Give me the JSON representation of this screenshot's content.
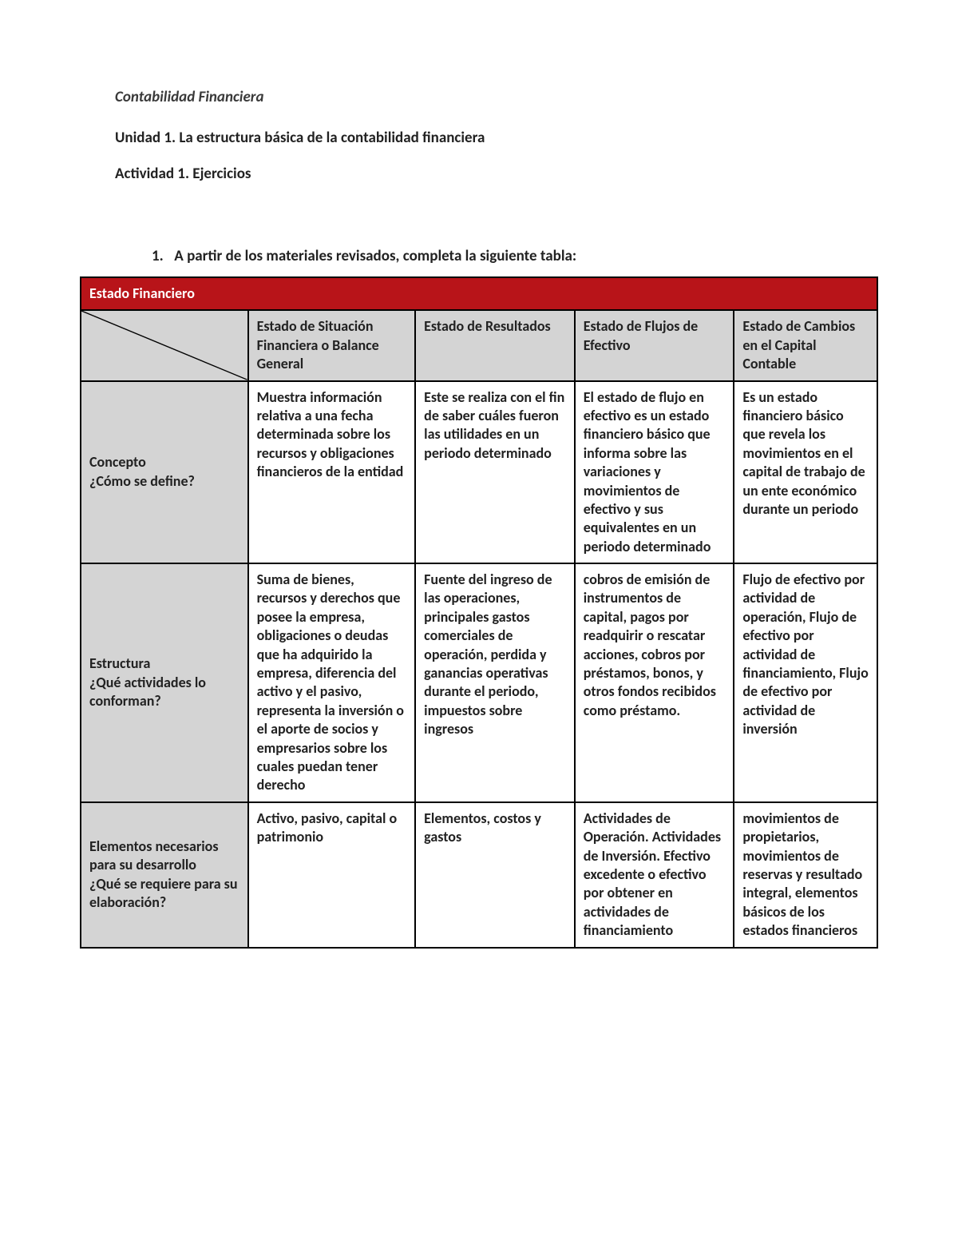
{
  "header": {
    "course_title": "Contabilidad Financiera",
    "unit_line": "Unidad 1. La estructura básica de la contabilidad financiera",
    "activity_line": "Actividad 1. Ejercicios"
  },
  "prompt": {
    "number": "1.",
    "text": "A partir de los materiales revisados, completa la siguiente tabla:"
  },
  "table": {
    "banner": "Estado Financiero",
    "columns": [
      "Estado de Situación Financiera o Balance General",
      "Estado de Resultados",
      "Estado de Flujos de Efectivo",
      "Estado de Cambios en el Capital Contable"
    ],
    "rows": [
      {
        "label": "Concepto\n¿Cómo se define?",
        "cells": [
          "Muestra información relativa a una fecha determinada sobre los recursos y obligaciones financieros de la entidad",
          "Este se realiza con el fin de saber cuáles fueron las utilidades en un periodo determinado",
          "El estado de flujo en efectivo es un estado financiero básico que informa sobre las variaciones y movimientos de efectivo y sus equivalentes en un periodo determinado",
          "Es un estado financiero básico que revela los movimientos en el capital de trabajo de un ente económico durante un periodo"
        ]
      },
      {
        "label": "Estructura\n¿Qué actividades lo conforman?",
        "cells": [
          "Suma de bienes, recursos y derechos que posee la empresa, obligaciones o deudas que ha adquirido la empresa, diferencia del activo y el pasivo, representa la inversión o el aporte de socios y empresarios sobre los cuales puedan tener derecho",
          "Fuente del ingreso de las operaciones, principales gastos comerciales de operación, perdida y ganancias operativas durante el periodo, impuestos sobre ingresos",
          "cobros de emisión de instrumentos de capital, pagos por readquirir o rescatar acciones, cobros por préstamos, bonos, y otros fondos recibidos como préstamo.",
          "Flujo de efectivo por actividad de operación, Flujo de efectivo por actividad de financiamiento, Flujo de efectivo por actividad de inversión"
        ]
      },
      {
        "label": "Elementos necesarios para su desarrollo\n¿Qué se requiere para su elaboración?",
        "cells": [
          "Activo, pasivo, capital o patrimonio",
          "Elementos, costos y gastos",
          "Actividades de Operación. Actividades de Inversión. Efectivo excedente o efectivo por obtener en actividades de financiamiento",
          "movimientos de propietarios, movimientos de reservas y resultado integral, elementos básicos de los estados financieros"
        ]
      }
    ]
  },
  "style": {
    "banner_bg": "#b81419",
    "banner_fg": "#ffffff",
    "gray_bg": "#d4d4d4",
    "border_color": "#000000",
    "text_color": "#222222"
  }
}
